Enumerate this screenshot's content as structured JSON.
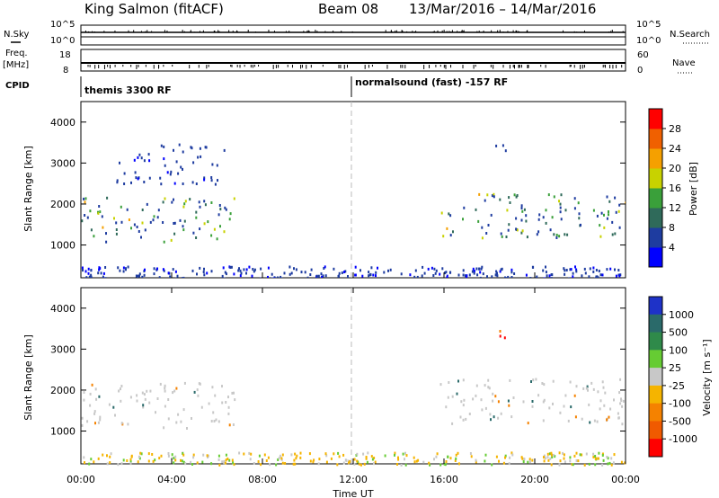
{
  "header": {
    "station": "King Salmon (fitACF)",
    "beam": "Beam 08",
    "dates": "13/Mar/2016 – 14/Mar/2016"
  },
  "status_panels": {
    "nsky_label": "N.Sky",
    "nsky_ticks": [
      "10^5",
      "10^0"
    ],
    "nsearch_label": "N.Search",
    "nsearch_ticks": [
      "10^5",
      "10^0"
    ],
    "freq_label": "Freq.",
    "freq_unit": "[MHz]",
    "freq_ticks": [
      "18",
      "8"
    ],
    "nave_label": "Nave",
    "nave_ticks": [
      "60",
      "0"
    ],
    "cpid_label": "CPID",
    "cpid_segments": [
      {
        "label": "themis 3300 RF",
        "start_hour": 0
      },
      {
        "label": "normalsound (fast) -157 RF",
        "start_hour": 12
      }
    ]
  },
  "chart_data": [
    {
      "type": "heatmap",
      "name": "power",
      "ylabel": "Slant Range [km]",
      "xlabel": "",
      "xlim": [
        0,
        24
      ],
      "ylim": [
        200,
        4500
      ],
      "yticks": [
        1000,
        2000,
        3000,
        4000
      ],
      "colorbar": {
        "label": "Power [dB]",
        "ticks": [
          "4",
          "8",
          "12",
          "16",
          "20",
          "24",
          "28"
        ],
        "colors": [
          "#0000ff",
          "#1e3ca0",
          "#2f6a5a",
          "#3aa03a",
          "#c8d200",
          "#f5a000",
          "#f06000",
          "#ff0000"
        ]
      },
      "regions": [
        {
          "t": [
            0.0,
            6.8
          ],
          "r": [
            1100,
            2200
          ],
          "level": "moderate"
        },
        {
          "t": [
            1.5,
            6.5
          ],
          "r": [
            2500,
            3500
          ],
          "level": "weak"
        },
        {
          "t": [
            15.8,
            24.0
          ],
          "r": [
            1200,
            2300
          ],
          "level": "moderate"
        },
        {
          "t": [
            18.0,
            19.0
          ],
          "r": [
            3300,
            3600
          ],
          "level": "weak"
        },
        {
          "t": [
            0.0,
            24.0
          ],
          "r": [
            200,
            500
          ],
          "level": "weak"
        }
      ]
    },
    {
      "type": "heatmap",
      "name": "velocity",
      "ylabel": "Slant Range [km]",
      "xlabel": "Time UT",
      "xlim": [
        0,
        24
      ],
      "ylim": [
        200,
        4500
      ],
      "yticks": [
        1000,
        2000,
        3000,
        4000
      ],
      "xticks": [
        "00:00",
        "04:00",
        "08:00",
        "12:00",
        "16:00",
        "20:00",
        "00:00"
      ],
      "colorbar": {
        "label": "Velocity [m s⁻¹]",
        "ticks": [
          "1000",
          "500",
          "100",
          "25",
          "-25",
          "-100",
          "-500",
          "-1000"
        ],
        "colors": [
          "#1e32c8",
          "#2a6a6a",
          "#2f8a4a",
          "#66cc33",
          "#c8c8c8",
          "#f5b400",
          "#f58200",
          "#f05a00",
          "#ff0000"
        ]
      },
      "regions": [
        {
          "t": [
            0.0,
            6.8
          ],
          "r": [
            1100,
            2200
          ],
          "level": "ground-scatter"
        },
        {
          "t": [
            15.8,
            24.0
          ],
          "r": [
            1200,
            2300
          ],
          "level": "ground-scatter"
        },
        {
          "t": [
            18.0,
            19.0
          ],
          "r": [
            3300,
            3600
          ],
          "level": "orange"
        },
        {
          "t": [
            0.0,
            24.0
          ],
          "r": [
            200,
            500
          ],
          "level": "mixed"
        }
      ],
      "marker_hour": 12
    }
  ]
}
